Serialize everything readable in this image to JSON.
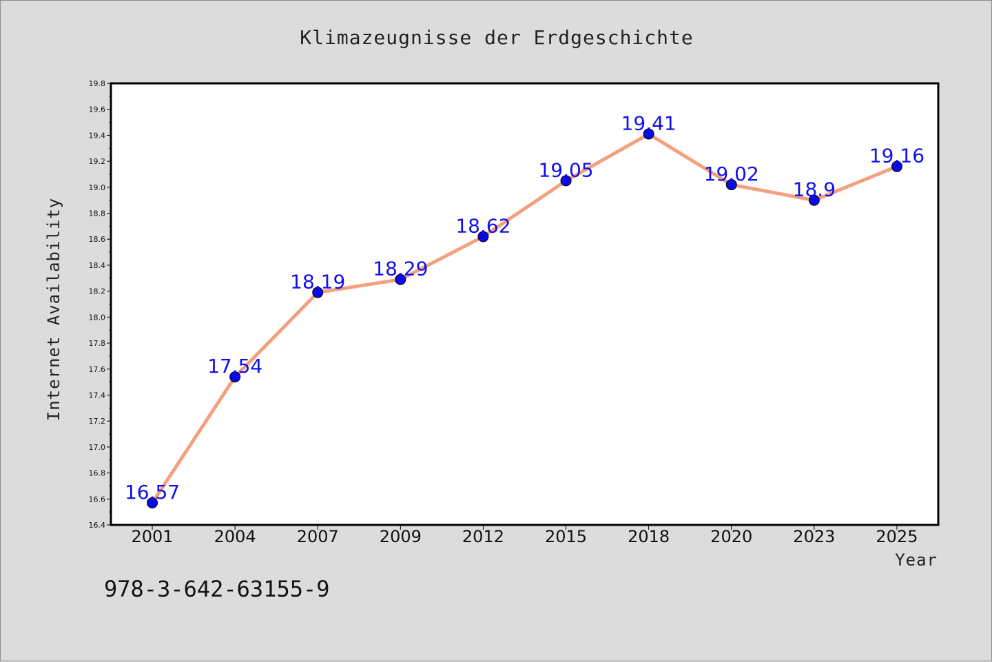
{
  "chart_data": {
    "type": "line",
    "title": "Klimazeugnisse der Erdgeschichte",
    "xlabel": "Year",
    "ylabel": "Internet Availability",
    "categories": [
      "2001",
      "2004",
      "2007",
      "2009",
      "2012",
      "2015",
      "2018",
      "2020",
      "2023",
      "2025"
    ],
    "series": [
      {
        "values": [
          16.57,
          17.54,
          18.19,
          18.29,
          18.62,
          19.05,
          19.41,
          19.02,
          18.9,
          19.16
        ],
        "data_labels": [
          "16.57",
          "17.54",
          "18.19",
          "18.29",
          "18.62",
          "19.05",
          "19.41",
          "19.02",
          "18.9",
          "19.16"
        ]
      }
    ],
    "ylim": [
      16.4,
      19.8
    ],
    "yticks": [
      "16.4",
      "16.6",
      "16.8",
      "17.0",
      "17.2",
      "17.4",
      "17.6",
      "17.8",
      "18.0",
      "18.2",
      "18.4",
      "18.6",
      "18.8",
      "19.0",
      "19.2",
      "19.4",
      "19.6",
      "19.8"
    ],
    "grid": false,
    "line_color": "#f4a07e",
    "marker_color": "#0a0ae6",
    "label_color": "#1010ee"
  },
  "footer": {
    "isbn": "978-3-642-63155-9"
  }
}
